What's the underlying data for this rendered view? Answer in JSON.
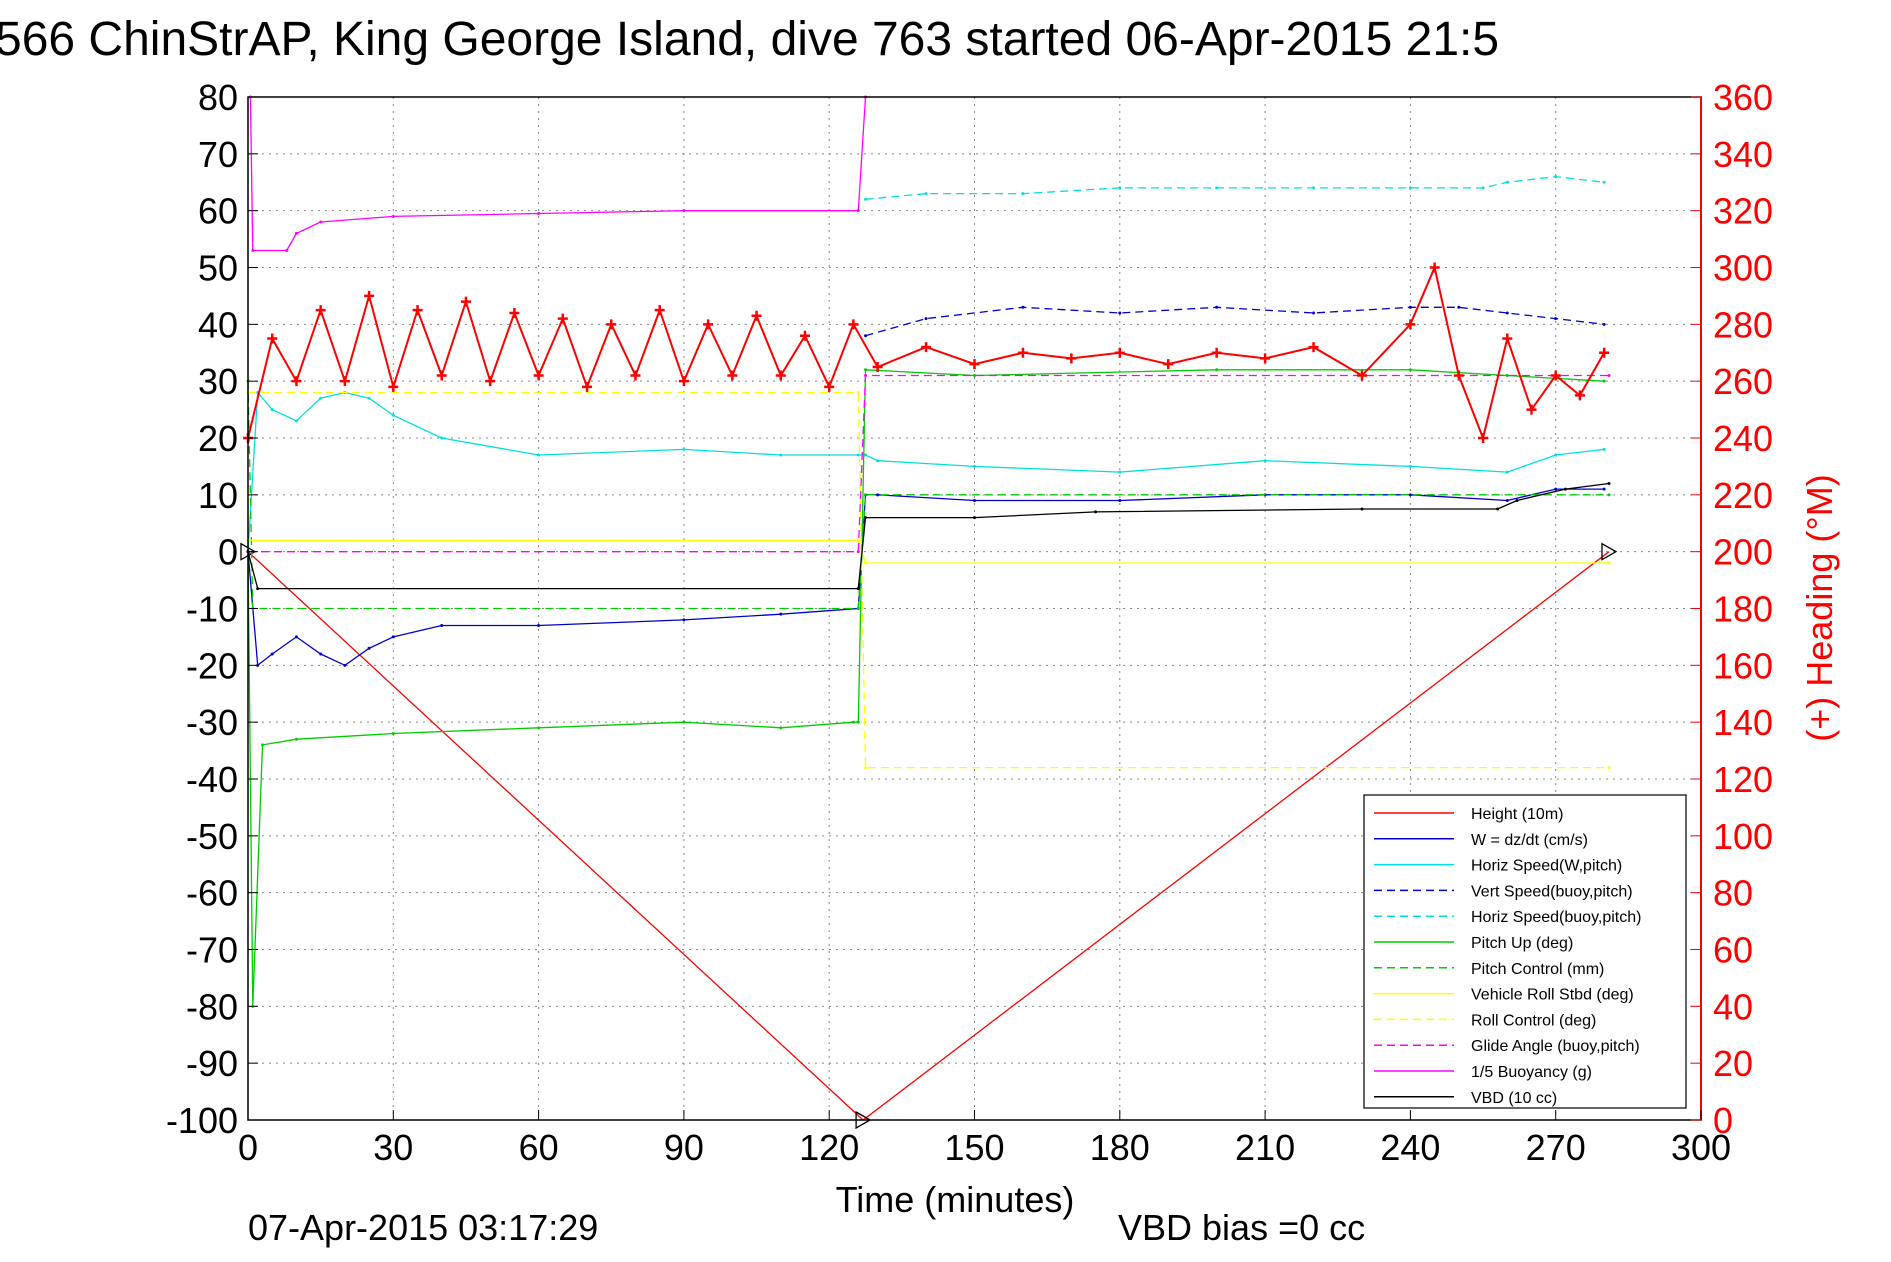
{
  "chart_data": {
    "type": "line",
    "title": "566 ChinStrAP, King George Island, dive 763 started 06-Apr-2015 21:5",
    "xlabel": "Time (minutes)",
    "ylabel_right": "(+) Heading (°M)",
    "footer_left": "07-Apr-2015 03:17:29",
    "footer_right": "VBD bias =0 cc",
    "xlim": [
      0,
      300
    ],
    "ylim": [
      -100,
      80
    ],
    "ylim_right": [
      0,
      360
    ],
    "x_ticks": [
      0,
      30,
      60,
      90,
      120,
      150,
      180,
      210,
      240,
      270,
      300
    ],
    "y_ticks": [
      80,
      70,
      60,
      50,
      40,
      30,
      20,
      10,
      0,
      -10,
      -20,
      -30,
      -40,
      -50,
      -60,
      -70,
      -80,
      -90,
      -100
    ],
    "y_ticks_right": [
      360,
      340,
      320,
      300,
      280,
      260,
      240,
      220,
      200,
      180,
      160,
      140,
      120,
      100,
      80,
      60,
      40,
      20,
      0
    ],
    "grid": true,
    "legend_position": "bottom-right",
    "series": [
      {
        "name": "Height (10m)",
        "color": "#ff0000",
        "style": "solid",
        "marker": "triangle",
        "axis": "left",
        "x": [
          0,
          127,
          281
        ],
        "y": [
          0,
          -100,
          0
        ]
      },
      {
        "name": "W = dz/dt (cm/s)",
        "color": "#0000cc",
        "style": "solid",
        "axis": "left",
        "x": [
          0,
          2,
          5,
          10,
          15,
          20,
          25,
          30,
          40,
          60,
          90,
          110,
          126,
          127.5,
          130,
          150,
          180,
          210,
          240,
          260,
          270,
          280
        ],
        "y": [
          0,
          -20,
          -18,
          -15,
          -18,
          -20,
          -17,
          -15,
          -13,
          -13,
          -12,
          -11,
          -10,
          10,
          10,
          9,
          9,
          10,
          10,
          9,
          11,
          11
        ]
      },
      {
        "name": "Horiz Speed(W,pitch)",
        "color": "#00e0e0",
        "style": "solid",
        "axis": "left",
        "x": [
          0,
          2,
          5,
          10,
          15,
          20,
          25,
          30,
          40,
          60,
          90,
          110,
          126,
          127.5,
          130,
          150,
          180,
          210,
          240,
          260,
          270,
          280
        ],
        "y": [
          0,
          28,
          25,
          23,
          27,
          28,
          27,
          24,
          20,
          17,
          18,
          17,
          17,
          17,
          16,
          15,
          14,
          16,
          15,
          14,
          17,
          18
        ]
      },
      {
        "name": "Vert Speed(buoy,pitch)",
        "color": "#0000cc",
        "style": "dashed",
        "axis": "left",
        "x": [
          127.5,
          140,
          160,
          180,
          200,
          220,
          240,
          250,
          260,
          270,
          280
        ],
        "y": [
          38,
          41,
          43,
          42,
          43,
          42,
          43,
          43,
          42,
          41,
          40
        ]
      },
      {
        "name": "Horiz Speed(buoy,pitch)",
        "color": "#00e0e0",
        "style": "dashed",
        "axis": "left",
        "x": [
          127.5,
          140,
          160,
          180,
          200,
          220,
          240,
          255,
          260,
          270,
          280
        ],
        "y": [
          62,
          63,
          63,
          64,
          64,
          64,
          64,
          64,
          65,
          66,
          65
        ]
      },
      {
        "name": "Pitch Up (deg)",
        "color": "#00cc00",
        "style": "solid",
        "axis": "left",
        "x": [
          0,
          1,
          3,
          10,
          30,
          60,
          90,
          110,
          125,
          126,
          127.5,
          150,
          200,
          240,
          260,
          280
        ],
        "y": [
          0,
          -80,
          -34,
          -33,
          -32,
          -31,
          -30,
          -31,
          -30,
          -30,
          32,
          31,
          32,
          32,
          31,
          30
        ]
      },
      {
        "name": "Pitch Control (mm)",
        "color": "#00cc00",
        "style": "dashed",
        "axis": "left",
        "x": [
          0,
          1,
          126,
          127.5,
          281
        ],
        "y": [
          30,
          -10,
          -10,
          10,
          10
        ]
      },
      {
        "name": "Vehicle Roll Stbd (deg)",
        "color": "#ffff00",
        "style": "solid",
        "axis": "left",
        "x": [
          0,
          126,
          127.5,
          281
        ],
        "y": [
          2,
          2,
          -2,
          -2
        ]
      },
      {
        "name": "Roll Control (deg)",
        "color": "#ffff00",
        "style": "dashed",
        "axis": "left",
        "x": [
          0,
          126,
          127.5,
          281
        ],
        "y": [
          28,
          28,
          -38,
          -38
        ]
      },
      {
        "name": "Glide Angle (buoy,pitch)",
        "color": "#ff00ff",
        "style": "dashed",
        "axis": "left",
        "x": [
          0,
          126,
          127.5,
          281
        ],
        "y": [
          0,
          0,
          31,
          31
        ]
      },
      {
        "name": "1/5 Buoyancy (g)",
        "color": "#ff00ff",
        "style": "solid",
        "axis": "left",
        "x": [
          0.5,
          1,
          8,
          10,
          15,
          30,
          60,
          90,
          126,
          127.5
        ],
        "y": [
          80,
          53,
          53,
          56,
          58,
          59,
          59.5,
          60,
          60,
          80
        ]
      },
      {
        "name": "VBD (10 cc)",
        "color": "#000000",
        "style": "solid",
        "axis": "left",
        "x": [
          0,
          2,
          126,
          127.5,
          150,
          175,
          230,
          258,
          262,
          272,
          281
        ],
        "y": [
          0,
          -6.5,
          -6.5,
          6,
          6,
          7,
          7.5,
          7.5,
          9,
          11,
          12
        ]
      },
      {
        "name": "Heading",
        "color": "#ff0000",
        "style": "solid",
        "marker": "plus",
        "axis": "right",
        "x": [
          0,
          5,
          10,
          15,
          20,
          25,
          30,
          35,
          40,
          45,
          50,
          55,
          60,
          65,
          70,
          75,
          80,
          85,
          90,
          95,
          100,
          105,
          110,
          115,
          120,
          125,
          130,
          140,
          150,
          160,
          170,
          180,
          190,
          200,
          210,
          220,
          230,
          240,
          245,
          250,
          255,
          260,
          265,
          270,
          275,
          280
        ],
        "y": [
          240,
          275,
          260,
          285,
          260,
          290,
          258,
          285,
          262,
          288,
          260,
          284,
          262,
          282,
          258,
          280,
          262,
          285,
          260,
          280,
          262,
          283,
          262,
          276,
          258,
          280,
          265,
          272,
          266,
          270,
          268,
          270,
          266,
          270,
          268,
          272,
          262,
          280,
          300,
          262,
          240,
          275,
          250,
          262,
          255,
          270
        ]
      }
    ],
    "legend": [
      {
        "label": "Height (10m)",
        "color": "#ff0000",
        "style": "solid"
      },
      {
        "label": "W = dz/dt (cm/s)",
        "color": "#0000cc",
        "style": "solid"
      },
      {
        "label": "Horiz Speed(W,pitch)",
        "color": "#00e0e0",
        "style": "solid"
      },
      {
        "label": "Vert Speed(buoy,pitch)",
        "color": "#0000cc",
        "style": "dashed"
      },
      {
        "label": "Horiz Speed(buoy,pitch)",
        "color": "#00e0e0",
        "style": "dashed"
      },
      {
        "label": "Pitch Up (deg)",
        "color": "#00cc00",
        "style": "solid"
      },
      {
        "label": "Pitch Control (mm)",
        "color": "#00cc00",
        "style": "dashed"
      },
      {
        "label": "Vehicle Roll Stbd (deg)",
        "color": "#ffff00",
        "style": "solid"
      },
      {
        "label": "Roll Control (deg)",
        "color": "#ffff00",
        "style": "dashed"
      },
      {
        "label": "Glide Angle (buoy,pitch)",
        "color": "#ff00ff",
        "style": "dashed"
      },
      {
        "label": "1/5 Buoyancy (g)",
        "color": "#ff00ff",
        "style": "solid"
      },
      {
        "label": "VBD (10 cc)",
        "color": "#000000",
        "style": "solid"
      }
    ]
  }
}
